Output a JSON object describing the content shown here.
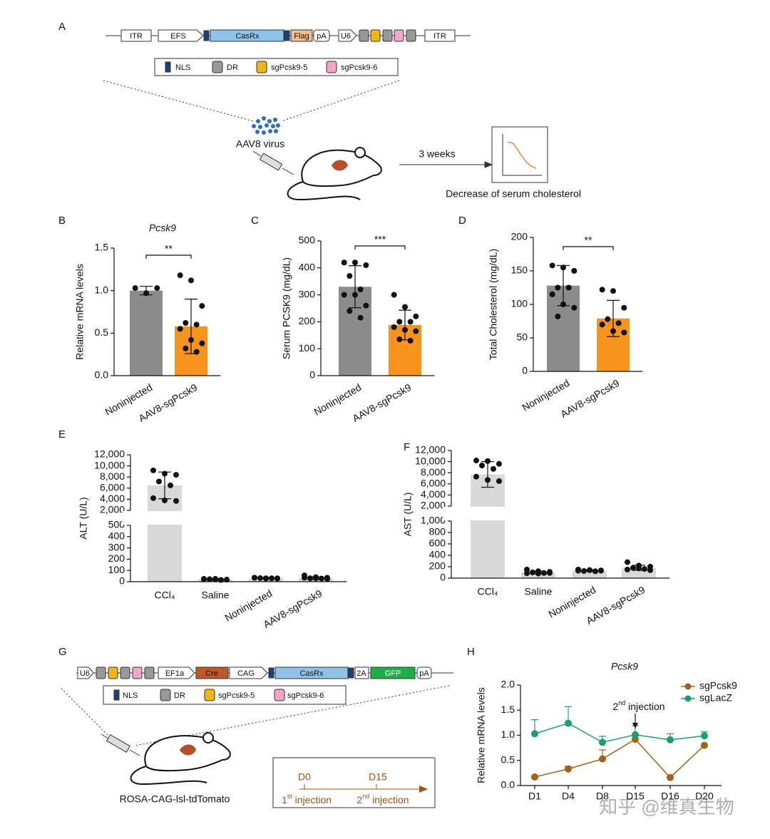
{
  "panel_A": {
    "letter": "A",
    "elements": [
      "ITR",
      "EFS",
      "CasRx",
      "Flag",
      "pA",
      "U6",
      "ITR"
    ],
    "legend": [
      "NLS",
      "DR",
      "sgPcsk9-5",
      "sgPcsk9-6"
    ],
    "virus": "AAV8 virus",
    "duration": "3 weeks",
    "outcome": "Decrease of serum cholesterol"
  },
  "panel_G": {
    "letter": "G",
    "elements": [
      "U6",
      "EF1a",
      "Cre",
      "CAG",
      "CasRx",
      "2A",
      "GFP",
      "pA"
    ],
    "legend": [
      "NLS",
      "DR",
      "sgPcsk9-5",
      "sgPcsk9-6"
    ],
    "mouse_strain": "ROSA-CAG-lsl-tdTomato",
    "timeline": {
      "points": [
        "D0",
        "D15"
      ],
      "injections": [
        {
          "n": "1",
          "sup": "st",
          "text": " injection"
        },
        {
          "n": "2",
          "sup": "nd",
          "text": " injection"
        }
      ]
    }
  },
  "watermark": "知乎 @维真生物",
  "chart_data": [
    {
      "type": "bar",
      "panel": "B",
      "title": "Pcsk9",
      "y_label": "Relative mRNA levels",
      "categories": [
        "Noninjected",
        "AAV8-sgPcsk9"
      ],
      "values": [
        1.0,
        0.58
      ],
      "errors": [
        0.05,
        0.32
      ],
      "colors": [
        "#8c8c8c",
        "#f7941d"
      ],
      "points": [
        [
          1.03,
          0.97,
          1.03
        ],
        [
          1.18,
          1.12,
          0.82,
          0.62,
          0.6,
          0.55,
          0.42,
          0.38,
          0.32,
          0.28
        ]
      ],
      "ylim": [
        0,
        1.5
      ],
      "yticks": [
        {
          "value": 0,
          "label": "0.0"
        },
        {
          "value": 0.5,
          "label": "0.5"
        },
        {
          "value": 1,
          "label": "1.0"
        },
        {
          "value": 1.5,
          "label": "1.5"
        }
      ],
      "significance": "**"
    },
    {
      "type": "bar",
      "panel": "C",
      "y_label": "Serum PCSK9 (mg/dL)",
      "categories": [
        "Noninjected",
        "AAV8-sgPcsk9"
      ],
      "values": [
        330,
        188
      ],
      "errors": [
        78,
        55
      ],
      "colors": [
        "#8c8c8c",
        "#f7941d"
      ],
      "points": [
        [
          420,
          420,
          410,
          370,
          320,
          300,
          300,
          260,
          240,
          215
        ],
        [
          300,
          255,
          220,
          200,
          200,
          180,
          170,
          165,
          135,
          130
        ]
      ],
      "ylim": [
        0,
        500
      ],
      "yticks": [
        0,
        100,
        200,
        300,
        400,
        500
      ],
      "significance": "***"
    },
    {
      "type": "bar",
      "panel": "D",
      "y_label": "Total Cholesterol (mg/dL)",
      "categories": [
        "Noninjected",
        "AAV8-sgPcsk9"
      ],
      "values": [
        128,
        79
      ],
      "errors": [
        30,
        27
      ],
      "colors": [
        "#8c8c8c",
        "#f7941d"
      ],
      "points": [
        [
          158,
          155,
          150,
          125,
          125,
          115,
          100,
          95,
          82
        ],
        [
          122,
          120,
          95,
          78,
          72,
          70,
          60,
          58
        ]
      ],
      "ylim": [
        0,
        200
      ],
      "yticks": [
        0,
        50,
        100,
        150,
        200
      ],
      "significance": "**"
    },
    {
      "type": "bar",
      "panel": "E",
      "y_label": "ALT (U/L)",
      "categories": [
        "CCl₄",
        "Saline",
        "Noninjected",
        "AAV8-sgPcsk9"
      ],
      "values": [
        6500,
        20,
        30,
        32
      ],
      "errors": [
        2400,
        8,
        6,
        12
      ],
      "colors": [
        "#d9d9d9",
        "#d9d9d9",
        "#d9d9d9",
        "#d9d9d9"
      ],
      "points": [
        [
          9200,
          8600,
          8400,
          7200,
          6500,
          4200,
          3800,
          3700
        ],
        [
          25,
          20,
          18,
          22,
          15,
          20,
          25,
          18
        ],
        [
          35,
          30,
          28,
          32,
          30,
          35,
          28,
          30
        ],
        [
          55,
          40,
          35,
          30,
          28,
          35,
          30,
          25
        ]
      ],
      "ylim": [
        0,
        12000
      ],
      "axis_break": [
        500,
        2000
      ],
      "yticks": [
        0,
        100,
        200,
        300,
        400,
        500,
        {
          "value": 2000,
          "label": "2,000"
        },
        {
          "value": 4000,
          "label": "4,000"
        },
        {
          "value": 6000,
          "label": "6,000"
        },
        {
          "value": 8000,
          "label": "8,000"
        },
        {
          "value": 10000,
          "label": "10,000"
        },
        {
          "value": 12000,
          "label": "12,000"
        }
      ]
    },
    {
      "type": "bar",
      "panel": "F",
      "y_label": "AST (U/L)",
      "categories": [
        "CCl₄",
        "Saline",
        "Noninjected",
        "AAV8-sgPcsk9"
      ],
      "values": [
        7700,
        100,
        130,
        180
      ],
      "errors": [
        2300,
        25,
        15,
        45
      ],
      "colors": [
        "#d9d9d9",
        "#d9d9d9",
        "#d9d9d9",
        "#d9d9d9"
      ],
      "points": [
        [
          10200,
          10100,
          9600,
          9300,
          8700,
          7300,
          6700,
          6500
        ],
        [
          150,
          120,
          110,
          100,
          90,
          85,
          80,
          90
        ],
        [
          150,
          140,
          130,
          125,
          120,
          130,
          140,
          135
        ],
        [
          280,
          220,
          200,
          180,
          160,
          150,
          170,
          140
        ]
      ],
      "ylim": [
        0,
        12000
      ],
      "axis_break": [
        1000,
        2000
      ],
      "yticks": [
        0,
        200,
        400,
        600,
        800,
        {
          "value": 1000,
          "label": "1,000"
        },
        {
          "value": 2000,
          "label": "2,000"
        },
        {
          "value": 4000,
          "label": "4,000"
        },
        {
          "value": 6000,
          "label": "6,000"
        },
        {
          "value": 8000,
          "label": "8,000"
        },
        {
          "value": 10000,
          "label": "10,000"
        },
        {
          "value": 12000,
          "label": "12,000"
        }
      ]
    },
    {
      "type": "line",
      "panel": "H",
      "title": "Pcsk9",
      "y_label": "Relative mRNA levels",
      "categories": [
        "D1",
        "D4",
        "D8",
        "D15",
        "D16",
        "D20"
      ],
      "series": [
        {
          "name": "sgPcsk9",
          "color": "#a0621a",
          "values": [
            0.17,
            0.33,
            0.53,
            0.92,
            0.16,
            0.8
          ],
          "errors": [
            0,
            0.05,
            0.18,
            0.1,
            0,
            0.02
          ]
        },
        {
          "name": "sgLacZ",
          "color": "#1e9e6e",
          "values": [
            1.03,
            1.24,
            0.86,
            1.01,
            0.91,
            0.99
          ],
          "errors": [
            0.28,
            0.33,
            0.12,
            0.18,
            0.12,
            0.08
          ]
        }
      ],
      "ylim": [
        0,
        2
      ],
      "yticks": [
        {
          "value": 0,
          "label": "0.0"
        },
        {
          "value": 0.5,
          "label": "0.5"
        },
        {
          "value": 1,
          "label": "1.0"
        },
        {
          "value": 1.5,
          "label": "1.5"
        },
        {
          "value": 2,
          "label": "2.0"
        }
      ],
      "annotation": {
        "n": "2",
        "sup": "nd",
        "text": " injection"
      },
      "legend": "top-right"
    }
  ]
}
